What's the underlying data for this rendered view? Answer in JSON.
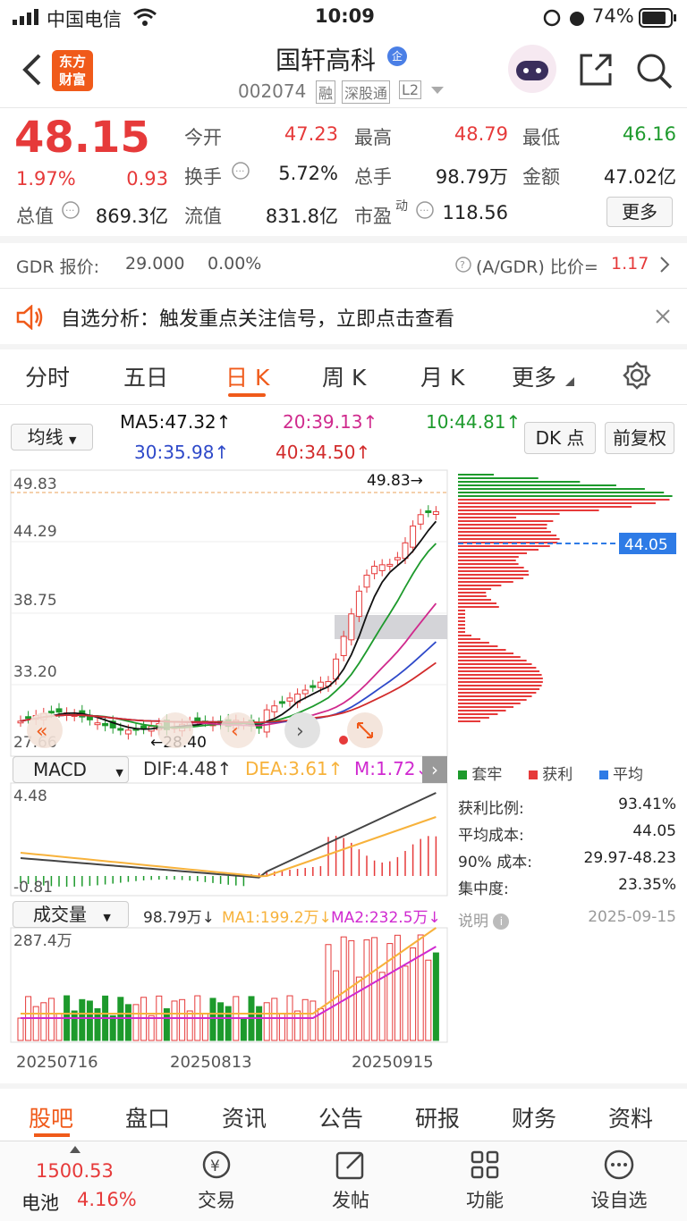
{
  "status_bar": {
    "carrier": "中国电信",
    "time": "10:09",
    "battery": "74%"
  },
  "header": {
    "logo_line1": "东方",
    "logo_line2": "财富",
    "stock_name": "国轩高科",
    "badge": "企",
    "code": "002074",
    "tag1": "融",
    "tag2": "深股通",
    "tag3": "L2"
  },
  "quote": {
    "price": "48.15",
    "change_pct": "1.97%",
    "change": "0.93",
    "open_label": "今开",
    "open": "47.23",
    "high_label": "最高",
    "high": "48.79",
    "low_label": "最低",
    "low": "46.16",
    "turnover_label": "换手",
    "turnover": "5.72%",
    "volume_label": "总手",
    "volume": "98.79万",
    "amount_label": "金额",
    "amount": "47.02亿",
    "mcap_label": "总值",
    "mcap": "869.3亿",
    "float_label": "流值",
    "float": "831.8亿",
    "pe_label": "市盈",
    "pe_sup": "动",
    "pe": "118.56",
    "more": "更多"
  },
  "gdr": {
    "label": "GDR 报价:",
    "price": "29.000",
    "pct": "0.00%",
    "ratio_label": "(A/GDR) 比价=",
    "ratio": "1.17"
  },
  "notice": {
    "text": "自选分析：触发重点关注信号，立即点击查看"
  },
  "tabs": [
    "分时",
    "五日",
    "日 K",
    "周 K",
    "月 K",
    "更多"
  ],
  "ma": {
    "selector": "均线",
    "ma5": "MA5:47.32",
    "ma20": "20:39.13",
    "ma10": "10:44.81",
    "ma30": "30:35.98",
    "ma40": "40:34.50",
    "dk": "DK 点",
    "adjust": "前复权"
  },
  "kline": {
    "y_labels": [
      "49.83",
      "44.29",
      "38.75",
      "33.20",
      "27.66"
    ],
    "high_marker": "49.83→",
    "low_marker": "←28.40",
    "cost_line": "44.05"
  },
  "macd": {
    "selector": "MACD",
    "dif": "DIF:4.48",
    "dea": "DEA:3.61",
    "m": "M:1.72",
    "top": "4.48",
    "bottom": "-0.81"
  },
  "volume": {
    "selector": "成交量",
    "vol": "98.79万",
    "ma1": "MA1:199.2万",
    "ma2": "MA2:232.5万",
    "top": "287.4万"
  },
  "dates": [
    "20250716",
    "20250813",
    "20250915"
  ],
  "chips": {
    "legend": [
      "套牢",
      "获利",
      "平均"
    ],
    "rows": [
      {
        "label": "获利比例:",
        "value": "93.41%"
      },
      {
        "label": "平均成本:",
        "value": "44.05"
      },
      {
        "label": "90% 成本:",
        "value": "29.97-48.23"
      },
      {
        "label": "集中度:",
        "value": "23.35%"
      }
    ],
    "note": "说明",
    "date": "2025-09-15"
  },
  "bottom_tabs": [
    "股吧",
    "盘口",
    "资讯",
    "公告",
    "研报",
    "财务",
    "资料"
  ],
  "dock": {
    "index_value": "1500.53",
    "battery_label": "电池",
    "battery_pct": "4.16%",
    "items": [
      "交易",
      "发帖",
      "功能",
      "设自选"
    ]
  },
  "colors": {
    "up": "#e63a3a",
    "down": "#1d9a2c",
    "accent": "#f05a1a"
  }
}
